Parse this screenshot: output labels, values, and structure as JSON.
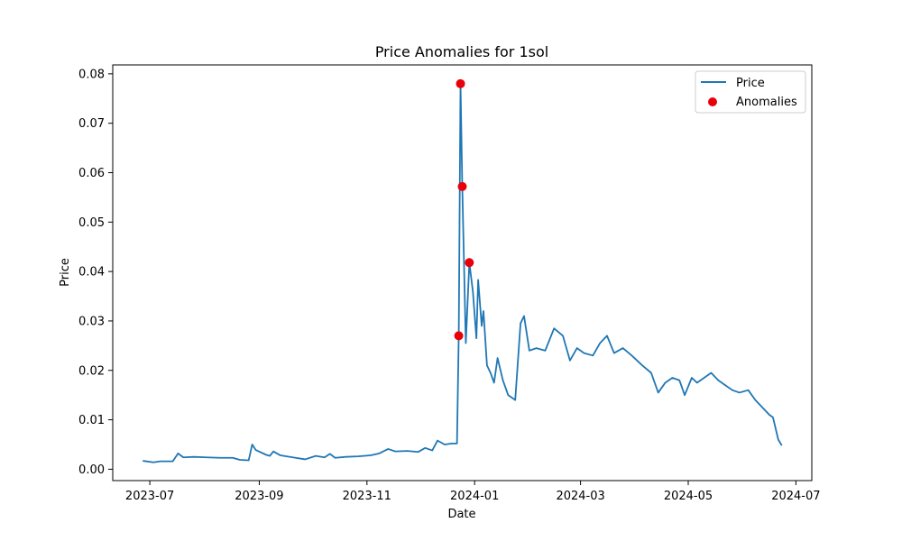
{
  "chart_data": {
    "type": "line",
    "title": "Price Anomalies for 1sol",
    "xlabel": "Date",
    "ylabel": "Price",
    "xlim": [
      "2023-06-10",
      "2024-07-10"
    ],
    "ylim": [
      -0.0023,
      0.0818
    ],
    "x_ticks": [
      "2023-07-01",
      "2023-09-01",
      "2023-11-01",
      "2024-01-01",
      "2024-03-01",
      "2024-05-01",
      "2024-07-01"
    ],
    "x_tick_labels": [
      "2023-07",
      "2023-09",
      "2023-11",
      "2024-01",
      "2024-03",
      "2024-05",
      "2024-07"
    ],
    "y_ticks": [
      0.0,
      0.01,
      0.02,
      0.03,
      0.04,
      0.05,
      0.06,
      0.07,
      0.08
    ],
    "y_tick_labels": [
      "0.00",
      "0.01",
      "0.02",
      "0.03",
      "0.04",
      "0.05",
      "0.06",
      "0.07",
      "0.08"
    ],
    "grid": false,
    "legend_position": "top-right",
    "series": [
      {
        "name": "Price",
        "kind": "line",
        "color": "#1f77b4",
        "points": [
          [
            "2023-06-27",
            0.0017
          ],
          [
            "2023-07-03",
            0.0014
          ],
          [
            "2023-07-07",
            0.0016
          ],
          [
            "2023-07-14",
            0.0016
          ],
          [
            "2023-07-17",
            0.0032
          ],
          [
            "2023-07-20",
            0.0024
          ],
          [
            "2023-07-26",
            0.0025
          ],
          [
            "2023-08-02",
            0.0024
          ],
          [
            "2023-08-10",
            0.0023
          ],
          [
            "2023-08-17",
            0.0023
          ],
          [
            "2023-08-21",
            0.0019
          ],
          [
            "2023-08-26",
            0.0018
          ],
          [
            "2023-08-28",
            0.005
          ],
          [
            "2023-08-30",
            0.0039
          ],
          [
            "2023-09-05",
            0.0029
          ],
          [
            "2023-09-07",
            0.0027
          ],
          [
            "2023-09-09",
            0.0036
          ],
          [
            "2023-09-13",
            0.0028
          ],
          [
            "2023-09-20",
            0.0024
          ],
          [
            "2023-09-27",
            0.002
          ],
          [
            "2023-10-03",
            0.0027
          ],
          [
            "2023-10-08",
            0.0024
          ],
          [
            "2023-10-11",
            0.0031
          ],
          [
            "2023-10-14",
            0.0023
          ],
          [
            "2023-10-20",
            0.0025
          ],
          [
            "2023-10-27",
            0.0026
          ],
          [
            "2023-11-03",
            0.0028
          ],
          [
            "2023-11-08",
            0.0032
          ],
          [
            "2023-11-13",
            0.0041
          ],
          [
            "2023-11-17",
            0.0036
          ],
          [
            "2023-11-24",
            0.0037
          ],
          [
            "2023-11-30",
            0.0035
          ],
          [
            "2023-12-04",
            0.0043
          ],
          [
            "2023-12-08",
            0.0038
          ],
          [
            "2023-12-11",
            0.0058
          ],
          [
            "2023-12-15",
            0.005
          ],
          [
            "2023-12-19",
            0.0052
          ],
          [
            "2023-12-22",
            0.0052
          ],
          [
            "2023-12-23",
            0.027
          ],
          [
            "2023-12-24",
            0.078
          ],
          [
            "2023-12-25",
            0.0572
          ],
          [
            "2023-12-27",
            0.0255
          ],
          [
            "2023-12-29",
            0.0418
          ],
          [
            "2023-12-31",
            0.036
          ],
          [
            "2024-01-02",
            0.0265
          ],
          [
            "2024-01-03",
            0.0383
          ],
          [
            "2024-01-05",
            0.029
          ],
          [
            "2024-01-06",
            0.032
          ],
          [
            "2024-01-08",
            0.021
          ],
          [
            "2024-01-10",
            0.0195
          ],
          [
            "2024-01-12",
            0.0175
          ],
          [
            "2024-01-14",
            0.0225
          ],
          [
            "2024-01-17",
            0.018
          ],
          [
            "2024-01-20",
            0.015
          ],
          [
            "2024-01-24",
            0.014
          ],
          [
            "2024-01-27",
            0.0295
          ],
          [
            "2024-01-29",
            0.031
          ],
          [
            "2024-02-01",
            0.024
          ],
          [
            "2024-02-05",
            0.0245
          ],
          [
            "2024-02-10",
            0.024
          ],
          [
            "2024-02-15",
            0.0285
          ],
          [
            "2024-02-20",
            0.027
          ],
          [
            "2024-02-24",
            0.022
          ],
          [
            "2024-02-28",
            0.0245
          ],
          [
            "2024-03-03",
            0.0235
          ],
          [
            "2024-03-08",
            0.023
          ],
          [
            "2024-03-12",
            0.0255
          ],
          [
            "2024-03-16",
            0.027
          ],
          [
            "2024-03-20",
            0.0235
          ],
          [
            "2024-03-25",
            0.0245
          ],
          [
            "2024-03-30",
            0.023
          ],
          [
            "2024-04-05",
            0.021
          ],
          [
            "2024-04-10",
            0.0195
          ],
          [
            "2024-04-14",
            0.0155
          ],
          [
            "2024-04-18",
            0.0175
          ],
          [
            "2024-04-22",
            0.0185
          ],
          [
            "2024-04-26",
            0.018
          ],
          [
            "2024-04-29",
            0.015
          ],
          [
            "2024-05-03",
            0.0185
          ],
          [
            "2024-05-06",
            0.0175
          ],
          [
            "2024-05-10",
            0.0185
          ],
          [
            "2024-05-14",
            0.0195
          ],
          [
            "2024-05-18",
            0.018
          ],
          [
            "2024-05-22",
            0.017
          ],
          [
            "2024-05-26",
            0.016
          ],
          [
            "2024-05-30",
            0.0155
          ],
          [
            "2024-06-04",
            0.016
          ],
          [
            "2024-06-08",
            0.014
          ],
          [
            "2024-06-12",
            0.0125
          ],
          [
            "2024-06-16",
            0.011
          ],
          [
            "2024-06-18",
            0.0105
          ],
          [
            "2024-06-21",
            0.006
          ],
          [
            "2024-06-23",
            0.0048
          ]
        ]
      },
      {
        "name": "Anomalies",
        "kind": "scatter",
        "color": "#e8000b",
        "points": [
          [
            "2023-12-23",
            0.027
          ],
          [
            "2023-12-24",
            0.078
          ],
          [
            "2023-12-25",
            0.0572
          ],
          [
            "2023-12-29",
            0.0418
          ]
        ]
      }
    ]
  }
}
